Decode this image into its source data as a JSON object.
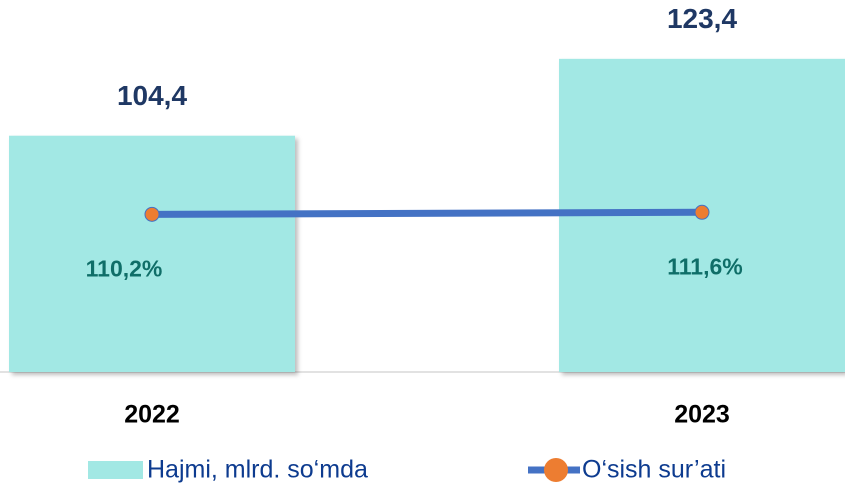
{
  "chart_data": {
    "type": "bar_line",
    "categories": [
      "2022",
      "2023"
    ],
    "series": [
      {
        "name": "Hajmi, mlrd. so‘mda",
        "type": "bar",
        "color": "#a2e8e4",
        "values": [
          104.4,
          123.4
        ],
        "value_labels": [
          "104,4",
          "123,4"
        ]
      },
      {
        "name": "O‘sish sur’ati",
        "type": "line",
        "axis": "y2",
        "color": "#4472c4",
        "marker_color": "#ed7d31",
        "values": [
          110.2,
          111.6
        ],
        "value_labels": [
          "110,2%",
          "111,6%"
        ]
      }
    ],
    "ylim": [
      46,
      133
    ],
    "y2lim": [
      0,
      246
    ],
    "grid": false
  }
}
